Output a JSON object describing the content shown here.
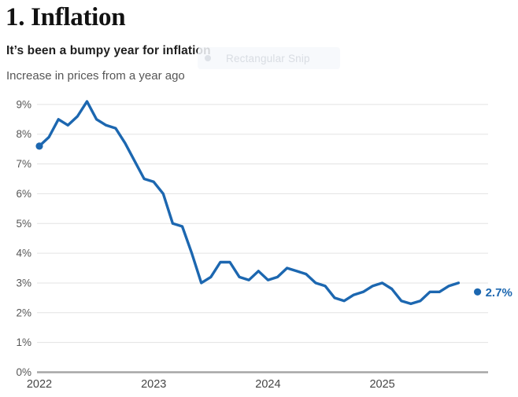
{
  "header": {
    "section_title": "1. Inflation"
  },
  "artifact": {
    "label": "Rectangular Snip"
  },
  "chart_data": {
    "type": "line",
    "title": "It’s been a bumpy year for inflation",
    "subtitle": "Increase in prices from a year ago",
    "unit": "percent, year-over-year",
    "x": [
      "2022-01",
      "2022-02",
      "2022-03",
      "2022-04",
      "2022-05",
      "2022-06",
      "2022-07",
      "2022-08",
      "2022-09",
      "2022-10",
      "2022-11",
      "2022-12",
      "2023-01",
      "2023-02",
      "2023-03",
      "2023-04",
      "2023-05",
      "2023-06",
      "2023-07",
      "2023-08",
      "2023-09",
      "2023-10",
      "2023-11",
      "2023-12",
      "2024-01",
      "2024-02",
      "2024-03",
      "2024-04",
      "2024-05",
      "2024-06",
      "2024-07",
      "2024-08",
      "2024-09",
      "2024-10",
      "2024-11",
      "2024-12",
      "2025-01",
      "2025-02",
      "2025-03",
      "2025-04",
      "2025-05",
      "2025-06",
      "2025-07",
      "2025-08",
      "2025-09"
    ],
    "values": [
      7.6,
      7.9,
      8.5,
      8.3,
      8.6,
      9.1,
      8.5,
      8.3,
      8.2,
      7.7,
      7.1,
      6.5,
      6.4,
      6.0,
      5.0,
      4.9,
      4.0,
      3.0,
      3.2,
      3.7,
      3.7,
      3.2,
      3.1,
      3.4,
      3.1,
      3.2,
      3.5,
      3.4,
      3.3,
      3.0,
      2.9,
      2.5,
      2.4,
      2.6,
      2.7,
      2.9,
      3.0,
      2.8,
      2.4,
      2.3,
      2.4,
      2.7,
      2.7,
      2.9,
      3.0
    ],
    "latest": {
      "x": "2025-11",
      "value": 2.7,
      "label": "2.7%"
    },
    "y_ticks": [
      "0%",
      "1%",
      "2%",
      "3%",
      "4%",
      "5%",
      "6%",
      "7%",
      "8%",
      "9%"
    ],
    "x_ticks": [
      "2022",
      "2023",
      "2024",
      "2025"
    ],
    "ylim": [
      0,
      9.5
    ],
    "grid": true,
    "legend": "none",
    "line_color": "#1c67b0",
    "grid_color": "#e3e3e3",
    "axis_color": "#a6a6a6"
  }
}
